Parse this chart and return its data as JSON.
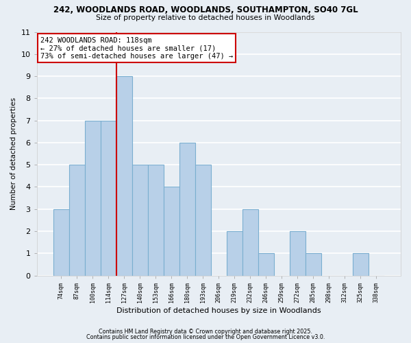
{
  "title1": "242, WOODLANDS ROAD, WOODLANDS, SOUTHAMPTON, SO40 7GL",
  "title2": "Size of property relative to detached houses in Woodlands",
  "xlabel": "Distribution of detached houses by size in Woodlands",
  "ylabel": "Number of detached properties",
  "bar_labels": [
    "74sqm",
    "87sqm",
    "100sqm",
    "114sqm",
    "127sqm",
    "140sqm",
    "153sqm",
    "166sqm",
    "180sqm",
    "193sqm",
    "206sqm",
    "219sqm",
    "232sqm",
    "246sqm",
    "259sqm",
    "272sqm",
    "285sqm",
    "298sqm",
    "312sqm",
    "325sqm",
    "338sqm"
  ],
  "bar_values": [
    3,
    5,
    7,
    7,
    9,
    5,
    5,
    4,
    6,
    5,
    0,
    2,
    3,
    1,
    0,
    2,
    1,
    0,
    0,
    1,
    0
  ],
  "bar_color": "#b8d0e8",
  "bar_edge_color": "#7aaed0",
  "vline_x": 3.5,
  "vline_color": "#cc0000",
  "annotation_title": "242 WOODLANDS ROAD: 118sqm",
  "annotation_line1": "← 27% of detached houses are smaller (17)",
  "annotation_line2": "73% of semi-detached houses are larger (47) →",
  "annotation_box_color": "white",
  "annotation_box_edge": "#cc0000",
  "ylim": [
    0,
    11
  ],
  "yticks": [
    0,
    1,
    2,
    3,
    4,
    5,
    6,
    7,
    8,
    9,
    10,
    11
  ],
  "footnote1": "Contains HM Land Registry data © Crown copyright and database right 2025.",
  "footnote2": "Contains public sector information licensed under the Open Government Licence v3.0.",
  "bg_color": "#e8eef4",
  "plot_bg_color": "#e8eef4",
  "grid_color": "#ffffff"
}
